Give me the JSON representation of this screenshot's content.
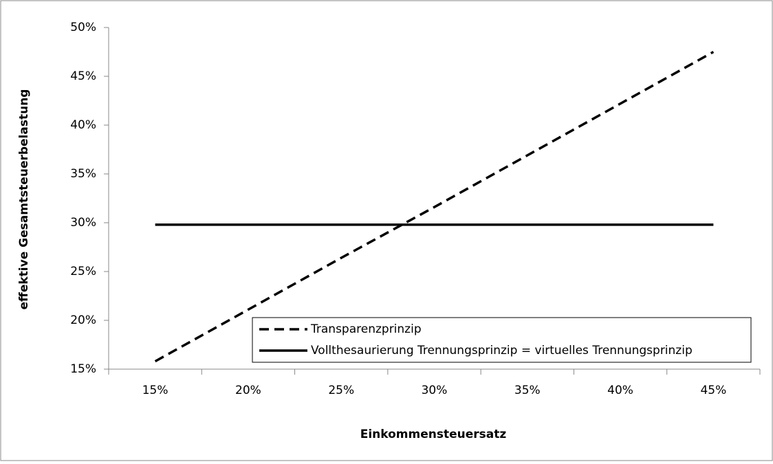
{
  "chart_data": {
    "type": "line",
    "x_label": "Einkommensteuersatz",
    "y_label": "effektive Gesamtsteuerbelastung",
    "categories": [
      "15%",
      "20%",
      "25%",
      "30%",
      "35%",
      "40%",
      "45%"
    ],
    "series": [
      {
        "name": "Transparenzprinzip",
        "color": "#000000",
        "style": "dashed",
        "values": [
          15.8,
          21.1,
          26.4,
          31.6,
          36.9,
          42.2,
          47.5
        ]
      },
      {
        "name": "Vollthesaurierung Trennungsprinzip = virtuelles Trennungsprinzip",
        "color": "#000000",
        "style": "solid",
        "values": [
          29.8,
          29.8,
          29.8,
          29.8,
          29.8,
          29.8,
          29.8
        ]
      }
    ],
    "ylim": [
      15,
      50
    ],
    "yticks": [
      {
        "value": 15,
        "label": "15%"
      },
      {
        "value": 20,
        "label": "20%"
      },
      {
        "value": 25,
        "label": "25%"
      },
      {
        "value": 30,
        "label": "30%"
      },
      {
        "value": 35,
        "label": "35%"
      },
      {
        "value": 40,
        "label": "40%"
      },
      {
        "value": 45,
        "label": "45%"
      },
      {
        "value": 50,
        "label": "50%"
      }
    ],
    "grid": false,
    "legend": "bottom-right"
  }
}
